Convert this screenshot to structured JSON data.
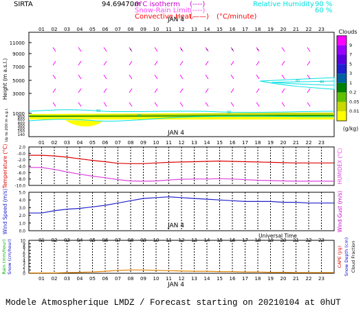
{
  "header": {
    "station": "SIRTA",
    "coords": "94.69",
    "coords_suffix": "470m",
    "legend": [
      {
        "label": "0°C isotherm",
        "sample": "(----)",
        "color": "#cc00cc"
      },
      {
        "label": "Snow-Rain Limit",
        "sample": "(----)",
        "color": "#ff44ff"
      },
      {
        "label": "Convective Heat.",
        "sample": "(——)",
        "unit": "(°C/minute)",
        "color": "#ff0000"
      }
    ],
    "humidity": [
      {
        "label": "Relative Humidity",
        "value": "90 %",
        "color": "#00e0e0"
      },
      {
        "value": "60 %",
        "color": "#00e0e0"
      }
    ]
  },
  "hours": [
    "01",
    "02",
    "03",
    "04",
    "05",
    "06",
    "07",
    "08",
    "09",
    "10",
    "11",
    "12",
    "13",
    "14",
    "15",
    "16",
    "17",
    "18",
    "19",
    "20",
    "21",
    "22",
    "23"
  ],
  "date_label": "JAN  4",
  "clouds_legend": {
    "title": "Clouds",
    "unit": "(g/kg)",
    "levels": [
      "9",
      "7",
      "5",
      "3",
      "1",
      "0.2",
      "0.05",
      "0.01"
    ],
    "colors": [
      "#ff00ff",
      "#9a00ff",
      "#5a00e0",
      "#2020d0",
      "#0060a0",
      "#008000",
      "#60c000",
      "#c8d800",
      "#ffff00"
    ]
  },
  "panel1": {
    "ylabel": "Height (m a.s.l.)",
    "ylabel2": "Up to 200 m a.g.l.",
    "ticks_upper": [
      "11000",
      "9000",
      "7000",
      "5000",
      "3000",
      "1000"
    ],
    "ticks_all": [
      "11000",
      "10000",
      "9000",
      "8000",
      "7000",
      "6000",
      "5000",
      "4000",
      "3000",
      "2000",
      "1000",
      "800",
      "600",
      "500",
      "400",
      "300",
      "200",
      "150",
      "140"
    ],
    "contour_labels": [
      "90",
      "60",
      "90",
      "60",
      "90"
    ]
  },
  "panel2": {
    "ylabel": "Temperature (°C)",
    "ylabel2": "HUMIDEX (°C)",
    "ticks": [
      "2.0",
      "-0.0",
      "-2.0",
      "-4.0",
      "-6.0",
      "-8.0",
      "-10.0"
    ]
  },
  "panel3": {
    "ylabel": "Wind Speed (m/s)",
    "ylabel2": "Wind Gust (m/s)",
    "ticks": [
      "5.0",
      "4.0",
      "3.0",
      "2.0",
      "1.0",
      "0.0"
    ]
  },
  "panel4": {
    "ylabel": "Rain (mm/hour)",
    "ylabel_b": "Snow (cm/hour)",
    "ylabel2": "CAPE (J/g)",
    "ylabel2_b": "Snow Depth (cm)",
    "ylabel2_c": "Cloud Fraction",
    "ticks": [
      "10",
      "9",
      "8",
      "7",
      "6",
      "5",
      "4",
      "3",
      "2",
      "1",
      "0"
    ],
    "xlabel": "Universal Time"
  },
  "footer": "Modele Atmospherique LMDZ / Forecast starting on 20210104 at 0hUT",
  "chart_data": [
    {
      "type": "heatmap",
      "title": "Clouds",
      "xlabel": "Universal Time",
      "ylabel": "Height (m a.s.l.)",
      "x": [
        1,
        2,
        3,
        4,
        5,
        6,
        7,
        8,
        9,
        10,
        11,
        12,
        13,
        14,
        15,
        16,
        17,
        18,
        19,
        20,
        21,
        22,
        23
      ],
      "ylim": [
        140,
        12000
      ],
      "low_cloud_layer_m": [
        900,
        1300
      ],
      "relative_humidity_contours": [
        "60 %",
        "90 %"
      ]
    },
    {
      "type": "line",
      "ylabel": "Temperature (°C)",
      "ylim": [
        -10,
        2
      ],
      "x": [
        1,
        2,
        3,
        4,
        5,
        6,
        7,
        8,
        9,
        10,
        11,
        12,
        13,
        14,
        15,
        16,
        17,
        18,
        19,
        20,
        21,
        22,
        23
      ],
      "series": [
        {
          "name": "Temperature",
          "color": "#dd0000",
          "values": [
            -0.6,
            -0.8,
            -1.2,
            -1.7,
            -2.2,
            -2.6,
            -3.1,
            -3.2,
            -3.2,
            -3.0,
            -2.8,
            -2.7,
            -2.6,
            -2.5,
            -2.4,
            -2.5,
            -2.6,
            -2.7,
            -2.8,
            -2.9,
            -3.0,
            -3.0,
            -3.0
          ]
        },
        {
          "name": "HUMIDEX",
          "color": "#dd44dd",
          "values": [
            -4.4,
            -5.0,
            -5.8,
            -6.5,
            -7.1,
            -7.6,
            -8.2,
            -8.6,
            -8.7,
            -8.6,
            -8.3,
            -8.1,
            -8.0,
            -8.0,
            -7.9,
            -8.0,
            -8.2,
            -8.4,
            -8.5,
            -8.6,
            -8.7,
            -8.7,
            -8.7
          ]
        }
      ]
    },
    {
      "type": "line",
      "ylabel": "Wind Speed (m/s)",
      "ylim": [
        0,
        5
      ],
      "x": [
        1,
        2,
        3,
        4,
        5,
        6,
        7,
        8,
        9,
        10,
        11,
        12,
        13,
        14,
        15,
        16,
        17,
        18,
        19,
        20,
        21,
        22,
        23
      ],
      "series": [
        {
          "name": "Wind Speed",
          "color": "#2020cc",
          "values": [
            2.3,
            2.6,
            2.8,
            2.9,
            3.1,
            3.3,
            3.6,
            3.9,
            4.2,
            4.3,
            4.4,
            4.3,
            4.2,
            4.1,
            4.0,
            3.9,
            3.8,
            3.8,
            3.8,
            3.7,
            3.7,
            3.6,
            3.6
          ]
        }
      ]
    },
    {
      "type": "line",
      "ylabel": "Rain (mm/hour)",
      "ylim": [
        0,
        10
      ],
      "x": [
        1,
        2,
        3,
        4,
        5,
        6,
        7,
        8,
        9,
        10,
        11,
        12,
        13,
        14,
        15,
        16,
        17,
        18,
        19,
        20,
        21,
        22,
        23
      ],
      "series": [
        {
          "name": "Cloud Fraction",
          "color": "#e08000",
          "values": [
            0.1,
            0.1,
            0.2,
            0.3,
            0.4,
            0.6,
            0.9,
            1.0,
            1.0,
            0.9,
            0.8,
            0.7,
            0.6,
            0.6,
            0.5,
            0.5,
            0.4,
            0.4,
            0.3,
            0.3,
            0.2,
            0.2,
            0.2
          ]
        }
      ]
    }
  ]
}
